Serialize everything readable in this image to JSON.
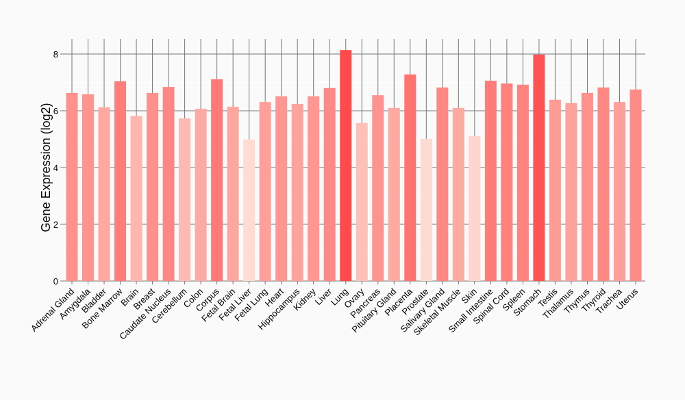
{
  "chart_data": {
    "type": "bar",
    "title": "",
    "xlabel": "",
    "ylabel": "Gene Expression (log2)",
    "ylim": [
      0,
      8.5
    ],
    "yticks": [
      0,
      2,
      4,
      6,
      8
    ],
    "grid": true,
    "legend": "none",
    "categories": [
      "Adrenal Gland",
      "Amygdala",
      "Bladder",
      "Bone Marrow",
      "Brain",
      "Breast",
      "Caudate Nucleus",
      "Cerebellum",
      "Colon",
      "Corpus",
      "Fetal Brain",
      "Fetal Liver",
      "Fetal Lung",
      "Heart",
      "Hippocampus",
      "Kidney",
      "Liver",
      "Lung",
      "Ovary",
      "Pancreas",
      "Pituitary Gland",
      "Placenta",
      "Prostate",
      "Salivary Gland",
      "Skeletal Muscle",
      "Skin",
      "Small Intestine",
      "Spinal Cord",
      "Spleen",
      "Stomach",
      "Testis",
      "Thalamus",
      "Thymus",
      "Thyroid",
      "Trachea",
      "Uterus"
    ],
    "values": [
      6.63,
      6.58,
      6.12,
      7.04,
      5.81,
      6.63,
      6.84,
      5.73,
      6.07,
      7.11,
      6.14,
      4.99,
      6.31,
      6.51,
      6.24,
      6.51,
      6.8,
      8.14,
      5.57,
      6.55,
      6.1,
      7.28,
      5.01,
      6.82,
      6.1,
      5.11,
      7.06,
      6.96,
      6.92,
      7.98,
      6.39,
      6.27,
      6.63,
      6.82,
      6.31,
      6.75
    ],
    "color_low": "#fedcd2",
    "color_high": "#ff4b4b"
  }
}
